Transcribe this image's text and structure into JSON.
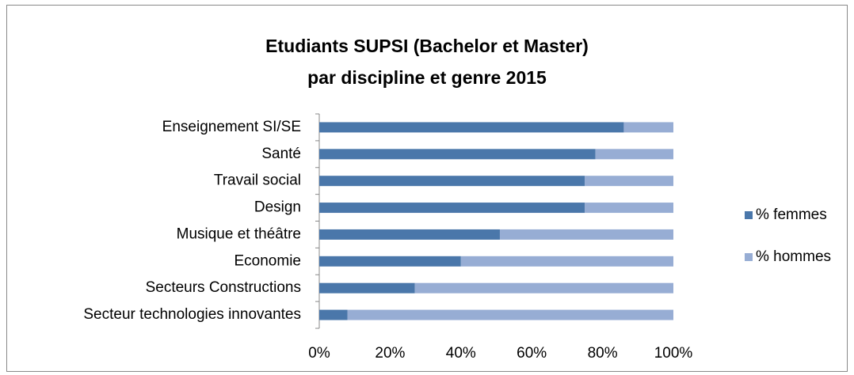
{
  "chart_data": {
    "type": "stacked_bar_horizontal",
    "title": [
      "Etudiants SUPSI (Bachelor et Master)",
      "par discipline et genre 2015"
    ],
    "categories": [
      "Enseignement SI/SE",
      "Santé",
      "Travail social",
      "Design",
      "Musique et théâtre",
      "Economie",
      "Secteurs Constructions",
      "Secteur technologies innovantes"
    ],
    "series": [
      {
        "name": "% femmes",
        "color": "#4a77aa",
        "values": [
          86,
          78,
          75,
          75,
          51,
          40,
          27,
          8
        ]
      },
      {
        "name": "% hommes",
        "color": "#97add4",
        "values": [
          14,
          22,
          25,
          25,
          49,
          60,
          73,
          92
        ]
      }
    ],
    "xlim": [
      0,
      100
    ],
    "xticks": [
      {
        "value": 0,
        "label": "0%"
      },
      {
        "value": 20,
        "label": "20%"
      },
      {
        "value": 40,
        "label": "40%"
      },
      {
        "value": 60,
        "label": "60%"
      },
      {
        "value": 80,
        "label": "80%"
      },
      {
        "value": 100,
        "label": "100%"
      }
    ],
    "grid": false,
    "legend": "right"
  }
}
